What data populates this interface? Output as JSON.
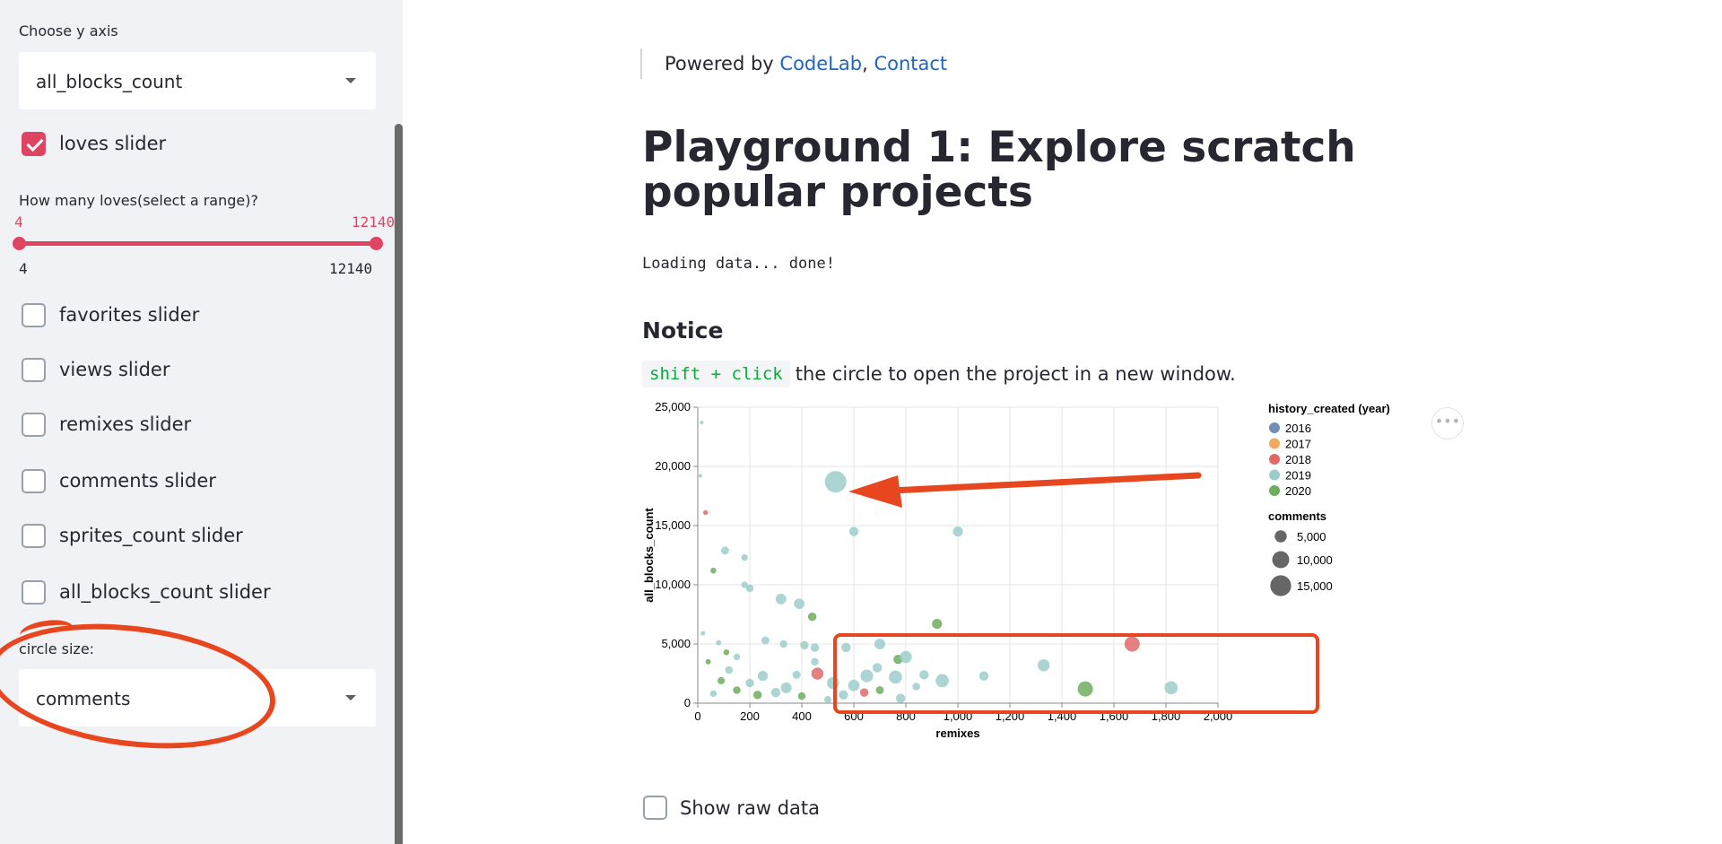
{
  "sidebar": {
    "y_axis_label": "Choose y axis",
    "y_axis_value": "all_blocks_count",
    "loves_slider": {
      "label": "loves slider",
      "checked": true
    },
    "loves_range_label": "How many loves(select a range)?",
    "loves_range": {
      "min": "4",
      "max": "12140",
      "selected_low": "4",
      "selected_high": "12140"
    },
    "checkboxes": [
      {
        "label": "favorites slider",
        "checked": false
      },
      {
        "label": "views slider",
        "checked": false
      },
      {
        "label": "remixes slider",
        "checked": false
      },
      {
        "label": "comments slider",
        "checked": false
      },
      {
        "label": "sprites_count slider",
        "checked": false
      },
      {
        "label": "all_blocks_count slider",
        "checked": false
      }
    ],
    "circle_size_label": "circle size:",
    "circle_size_value": "comments"
  },
  "main": {
    "powered_prefix": "Powered by",
    "powered_link1": "CodeLab",
    "powered_separator": ",",
    "powered_link2": "Contact",
    "title": "Playground 1: Explore scratch popular projects",
    "loading": "Loading data... done!",
    "notice_heading": "Notice",
    "notice_code": "shift + click",
    "notice_text": "the circle to open the project in a new window.",
    "more_menu": "•••",
    "show_raw_label": "Show raw data"
  },
  "colors": {
    "accent": "#e04463",
    "link": "#1c66c4",
    "code_green": "#09ab3b",
    "annotation_red": "#e8461f"
  },
  "chart_data": {
    "type": "scatter",
    "xlabel": "remixes",
    "ylabel": "all_blocks_count",
    "xlim": [
      0,
      2000
    ],
    "ylim": [
      0,
      25000
    ],
    "x_ticks": [
      "0",
      "200",
      "400",
      "600",
      "800",
      "1,000",
      "1,200",
      "1,400",
      "1,600",
      "1,800",
      "2,000"
    ],
    "y_ticks": [
      "0",
      "5,000",
      "10,000",
      "15,000",
      "20,000",
      "25,000"
    ],
    "grid": true,
    "legend_color": {
      "title": "history_created (year)",
      "entries": [
        {
          "label": "2016",
          "color": "#6f8fb3"
        },
        {
          "label": "2017",
          "color": "#f0a85d"
        },
        {
          "label": "2018",
          "color": "#e06a6a"
        },
        {
          "label": "2019",
          "color": "#9ccccb"
        },
        {
          "label": "2020",
          "color": "#70ad5f"
        }
      ]
    },
    "legend_size": {
      "title": "comments",
      "entries": [
        {
          "label": "5,000",
          "value": 5000
        },
        {
          "label": "10,000",
          "value": 10000
        },
        {
          "label": "15,000",
          "value": 15000
        }
      ]
    },
    "points": [
      {
        "x": 530,
        "y": 18700,
        "year": "2019",
        "comments": 16000
      },
      {
        "x": 600,
        "y": 14500,
        "year": "2019",
        "comments": 3000
      },
      {
        "x": 1000,
        "y": 14500,
        "year": "2019",
        "comments": 3500
      },
      {
        "x": 1670,
        "y": 5000,
        "year": "2018",
        "comments": 8000
      },
      {
        "x": 1490,
        "y": 1200,
        "year": "2020",
        "comments": 8000
      },
      {
        "x": 1820,
        "y": 1300,
        "year": "2019",
        "comments": 6000
      },
      {
        "x": 1330,
        "y": 3200,
        "year": "2019",
        "comments": 5000
      },
      {
        "x": 1100,
        "y": 2300,
        "year": "2019",
        "comments": 3000
      },
      {
        "x": 940,
        "y": 1900,
        "year": "2019",
        "comments": 6000
      },
      {
        "x": 920,
        "y": 6700,
        "year": "2020",
        "comments": 3500
      },
      {
        "x": 320,
        "y": 8800,
        "year": "2019",
        "comments": 4000
      },
      {
        "x": 390,
        "y": 8400,
        "year": "2019",
        "comments": 3800
      },
      {
        "x": 440,
        "y": 7300,
        "year": "2020",
        "comments": 2500
      },
      {
        "x": 200,
        "y": 9700,
        "year": "2019",
        "comments": 2000
      },
      {
        "x": 180,
        "y": 12300,
        "year": "2019",
        "comments": 1500
      },
      {
        "x": 105,
        "y": 12900,
        "year": "2019",
        "comments": 2200
      },
      {
        "x": 60,
        "y": 11200,
        "year": "2020",
        "comments": 1200
      },
      {
        "x": 30,
        "y": 16100,
        "year": "2018",
        "comments": 800
      },
      {
        "x": 15,
        "y": 23700,
        "year": "2019",
        "comments": 500
      },
      {
        "x": 10,
        "y": 19200,
        "year": "2019",
        "comments": 500
      },
      {
        "x": 180,
        "y": 10000,
        "year": "2019",
        "comments": 1500
      },
      {
        "x": 260,
        "y": 5300,
        "year": "2019",
        "comments": 2200
      },
      {
        "x": 330,
        "y": 5000,
        "year": "2019",
        "comments": 2000
      },
      {
        "x": 410,
        "y": 4900,
        "year": "2019",
        "comments": 2500
      },
      {
        "x": 450,
        "y": 4700,
        "year": "2019",
        "comments": 2500
      },
      {
        "x": 570,
        "y": 4700,
        "year": "2019",
        "comments": 3000
      },
      {
        "x": 700,
        "y": 5000,
        "year": "2019",
        "comments": 4000
      },
      {
        "x": 770,
        "y": 3700,
        "year": "2020",
        "comments": 3000
      },
      {
        "x": 800,
        "y": 3900,
        "year": "2019",
        "comments": 5000
      },
      {
        "x": 450,
        "y": 3500,
        "year": "2019",
        "comments": 2000
      },
      {
        "x": 460,
        "y": 2500,
        "year": "2018",
        "comments": 5000
      },
      {
        "x": 640,
        "y": 900,
        "year": "2018",
        "comments": 2500
      },
      {
        "x": 600,
        "y": 1500,
        "year": "2019",
        "comments": 4500
      },
      {
        "x": 650,
        "y": 2300,
        "year": "2019",
        "comments": 5500
      },
      {
        "x": 520,
        "y": 1700,
        "year": "2019",
        "comments": 5000
      },
      {
        "x": 560,
        "y": 700,
        "year": "2019",
        "comments": 3000
      },
      {
        "x": 760,
        "y": 2200,
        "year": "2019",
        "comments": 6000
      },
      {
        "x": 780,
        "y": 400,
        "year": "2019",
        "comments": 3000
      },
      {
        "x": 870,
        "y": 2400,
        "year": "2019",
        "comments": 3000
      },
      {
        "x": 690,
        "y": 3000,
        "year": "2019",
        "comments": 3000
      },
      {
        "x": 340,
        "y": 1300,
        "year": "2019",
        "comments": 4000
      },
      {
        "x": 300,
        "y": 900,
        "year": "2019",
        "comments": 3000
      },
      {
        "x": 250,
        "y": 2300,
        "year": "2019",
        "comments": 3500
      },
      {
        "x": 230,
        "y": 700,
        "year": "2020",
        "comments": 2500
      },
      {
        "x": 200,
        "y": 1700,
        "year": "2019",
        "comments": 2500
      },
      {
        "x": 150,
        "y": 1100,
        "year": "2020",
        "comments": 2000
      },
      {
        "x": 120,
        "y": 2800,
        "year": "2019",
        "comments": 2000
      },
      {
        "x": 90,
        "y": 1900,
        "year": "2020",
        "comments": 1800
      },
      {
        "x": 60,
        "y": 800,
        "year": "2019",
        "comments": 1500
      },
      {
        "x": 40,
        "y": 3500,
        "year": "2020",
        "comments": 1000
      },
      {
        "x": 20,
        "y": 5900,
        "year": "2019",
        "comments": 700
      },
      {
        "x": 150,
        "y": 3900,
        "year": "2019",
        "comments": 1500
      },
      {
        "x": 110,
        "y": 4300,
        "year": "2020",
        "comments": 1200
      },
      {
        "x": 80,
        "y": 5100,
        "year": "2019",
        "comments": 1000
      },
      {
        "x": 380,
        "y": 2400,
        "year": "2019",
        "comments": 2200
      },
      {
        "x": 400,
        "y": 600,
        "year": "2020",
        "comments": 2000
      },
      {
        "x": 700,
        "y": 1100,
        "year": "2020",
        "comments": 2200
      },
      {
        "x": 840,
        "y": 1400,
        "year": "2019",
        "comments": 2000
      },
      {
        "x": 500,
        "y": 300,
        "year": "2019",
        "comments": 1800
      }
    ],
    "annotations": [
      "arrow",
      "rectangle"
    ]
  }
}
